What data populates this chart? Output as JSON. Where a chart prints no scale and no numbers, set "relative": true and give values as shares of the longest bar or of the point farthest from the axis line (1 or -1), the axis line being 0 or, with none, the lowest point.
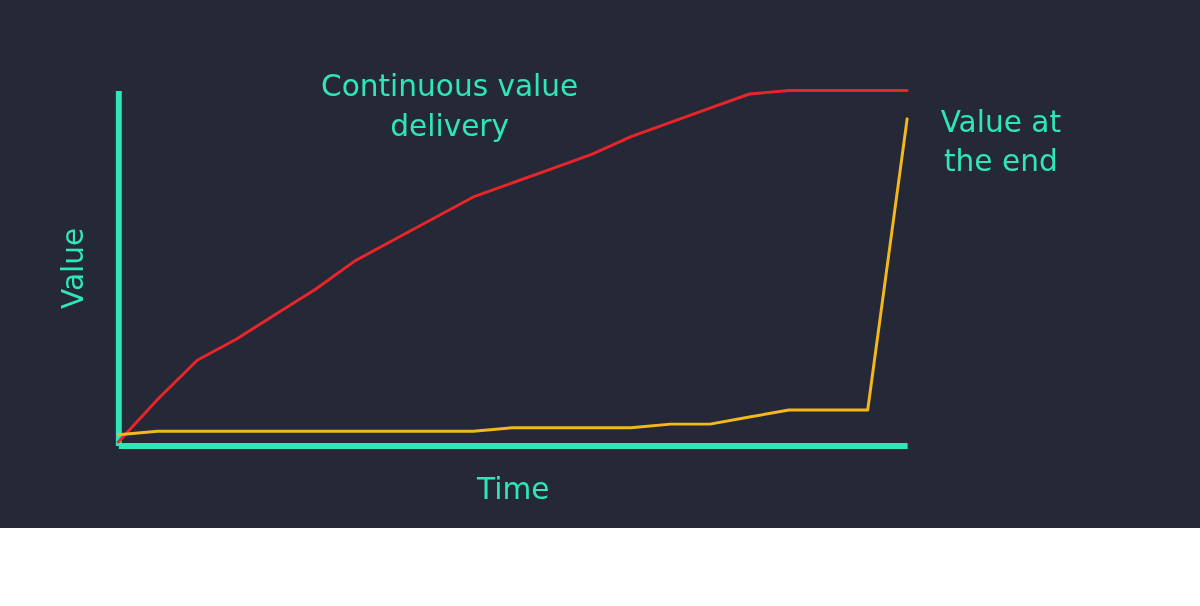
{
  "chart_data": {
    "type": "line",
    "relative": true,
    "xlabel": "Time",
    "ylabel": "Value",
    "tick_labels": false,
    "grid": false,
    "legend": false,
    "categories": [
      null,
      null,
      null,
      null,
      null,
      null,
      null,
      null,
      null,
      null,
      null,
      null,
      null,
      null,
      null,
      null,
      null,
      null,
      null,
      null,
      null
    ],
    "series": [
      {
        "color": "#e8262a",
        "values": [
          0.01,
          0.13,
          0.24,
          0.3,
          0.37,
          0.44,
          0.52,
          0.58,
          0.64,
          0.7,
          0.74,
          0.78,
          0.82,
          0.87,
          0.91,
          0.95,
          0.99,
          1,
          1,
          1,
          1
        ]
      },
      {
        "color": "#f4b81c",
        "values": [
          0.03,
          0.04,
          0.04,
          0.04,
          0.04,
          0.04,
          0.04,
          0.04,
          0.04,
          0.04,
          0.05,
          0.05,
          0.05,
          0.05,
          0.06,
          0.06,
          0.08,
          0.1,
          0.1,
          0.1,
          0.92
        ]
      }
    ],
    "annotations": [
      "Continuous value delivery",
      "Value at the end"
    ]
  }
}
